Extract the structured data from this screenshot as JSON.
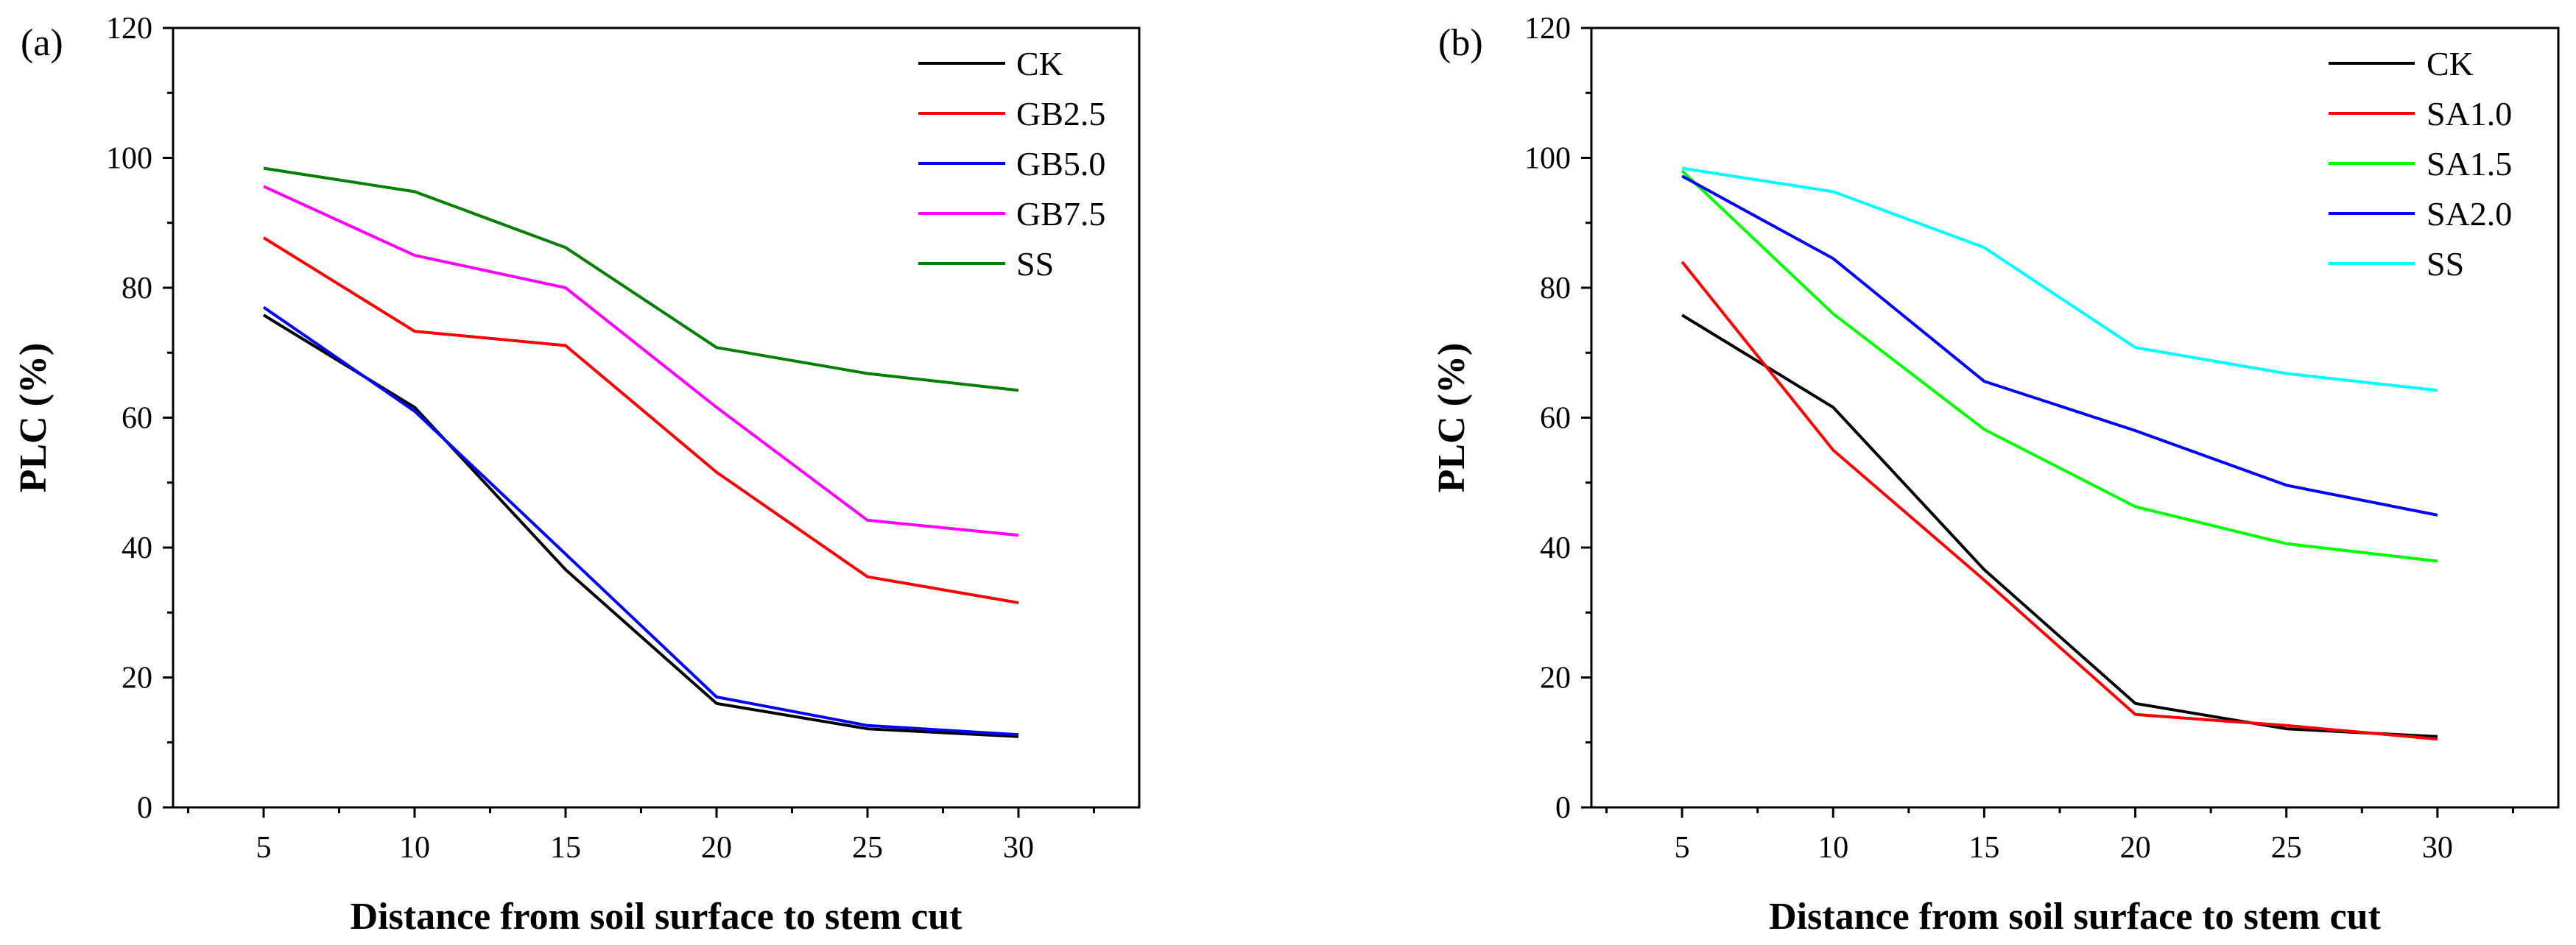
{
  "chart_data": [
    {
      "type": "line",
      "panel_label": "(a)",
      "title": "",
      "xlabel": "Distance from soil surface to stem cut",
      "ylabel": "PLC (%)",
      "x": [
        5,
        10,
        15,
        20,
        25,
        30
      ],
      "x_ticks": [
        5,
        10,
        15,
        20,
        25,
        30
      ],
      "xlim": [
        2,
        34
      ],
      "ylim": [
        0,
        120
      ],
      "y_ticks": [
        0,
        20,
        40,
        60,
        80,
        100,
        120
      ],
      "legend_position": "top-right",
      "series": [
        {
          "name": "CK",
          "color": "#000000",
          "values": [
            75.8,
            61.6,
            36.6,
            16.0,
            12.1,
            10.9
          ]
        },
        {
          "name": "GB2.5",
          "color": "#ff0000",
          "values": [
            87.7,
            73.3,
            71.1,
            51.6,
            35.5,
            31.5
          ]
        },
        {
          "name": "GB5.0",
          "color": "#0000ff",
          "values": [
            77.0,
            61.0,
            39.0,
            17.0,
            12.6,
            11.2
          ]
        },
        {
          "name": "GB7.5",
          "color": "#ff00ff",
          "values": [
            95.6,
            85.0,
            80.0,
            61.6,
            44.2,
            41.9
          ]
        },
        {
          "name": "SS",
          "color": "#007f00",
          "values": [
            98.4,
            94.8,
            86.2,
            70.8,
            66.8,
            64.2
          ]
        }
      ]
    },
    {
      "type": "line",
      "panel_label": "(b)",
      "title": "",
      "xlabel": "Distance from soil surface to stem cut",
      "ylabel": "PLC (%)",
      "x": [
        5,
        10,
        15,
        20,
        25,
        30
      ],
      "x_ticks": [
        5,
        10,
        15,
        20,
        25,
        30
      ],
      "xlim": [
        2,
        34
      ],
      "ylim": [
        0,
        120
      ],
      "y_ticks": [
        0,
        20,
        40,
        60,
        80,
        100,
        120
      ],
      "legend_position": "top-right",
      "series": [
        {
          "name": "CK",
          "color": "#000000",
          "values": [
            75.8,
            61.6,
            36.6,
            16.0,
            12.1,
            10.9
          ]
        },
        {
          "name": "SA1.0",
          "color": "#ff0000",
          "values": [
            84.0,
            55.0,
            35.0,
            14.3,
            12.6,
            10.5
          ]
        },
        {
          "name": "SA1.5",
          "color": "#00ff00",
          "values": [
            98.0,
            76.0,
            58.2,
            46.3,
            40.6,
            37.9
          ]
        },
        {
          "name": "SA2.0",
          "color": "#0000ff",
          "values": [
            97.2,
            84.5,
            65.6,
            58.0,
            49.6,
            45.0
          ]
        },
        {
          "name": "SS",
          "color": "#00ffff",
          "values": [
            98.4,
            94.8,
            86.2,
            70.8,
            66.8,
            64.2
          ]
        }
      ]
    }
  ]
}
